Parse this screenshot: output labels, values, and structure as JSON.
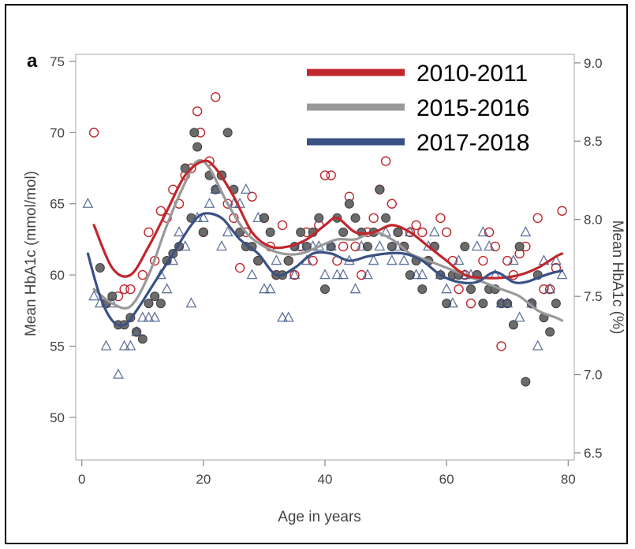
{
  "chart_data": {
    "type": "scatter",
    "panel_label": "a",
    "xlabel": "Age in years",
    "ylabel": "Mean HbA1c (mmol/mol)",
    "ylabel_right": "Mean HbA1c (%)",
    "xlim": [
      -1,
      81
    ],
    "ylim": [
      47,
      75.5
    ],
    "xticks": [
      0,
      20,
      40,
      60,
      80
    ],
    "yticks": [
      50,
      55,
      60,
      65,
      70,
      75
    ],
    "yticks_right": [
      {
        "label": "6.5",
        "value": 47.5
      },
      {
        "label": "7.0",
        "value": 53.0
      },
      {
        "label": "7.5",
        "value": 58.5
      },
      {
        "label": "8.0",
        "value": 63.9
      },
      {
        "label": "8.5",
        "value": 69.4
      },
      {
        "label": "9.0",
        "value": 74.9
      }
    ],
    "grid": false,
    "legend_position": "top-right",
    "colors": {
      "2010-2011": "#c0272d",
      "2015-2016": "#999999",
      "2017-2018": "#3a5184"
    },
    "series": [
      {
        "name": "2010-2011",
        "marker": "open-circle",
        "color": "#c0272d",
        "points": [
          [
            2,
            70
          ],
          [
            4,
            58
          ],
          [
            6,
            58.5
          ],
          [
            7,
            59
          ],
          [
            8,
            59
          ],
          [
            9,
            56
          ],
          [
            10,
            60
          ],
          [
            11,
            63
          ],
          [
            12,
            61
          ],
          [
            13,
            64.5
          ],
          [
            14,
            64
          ],
          [
            15,
            66
          ],
          [
            16,
            65
          ],
          [
            17,
            67
          ],
          [
            18,
            67.5
          ],
          [
            19,
            71.5
          ],
          [
            19.5,
            70
          ],
          [
            20,
            63
          ],
          [
            21,
            68
          ],
          [
            22,
            72.5
          ],
          [
            23,
            67
          ],
          [
            24,
            65
          ],
          [
            25,
            64
          ],
          [
            26,
            60.5
          ],
          [
            27,
            63
          ],
          [
            28,
            65.5
          ],
          [
            29,
            61
          ],
          [
            30,
            64
          ],
          [
            31,
            62
          ],
          [
            32,
            60
          ],
          [
            33,
            63.5
          ],
          [
            34,
            61
          ],
          [
            35,
            60
          ],
          [
            36,
            62
          ],
          [
            37,
            63
          ],
          [
            38,
            61
          ],
          [
            39,
            63.5
          ],
          [
            40,
            67
          ],
          [
            41,
            67
          ],
          [
            42,
            61
          ],
          [
            43,
            62
          ],
          [
            44,
            65.5
          ],
          [
            45,
            62
          ],
          [
            46,
            60
          ],
          [
            47,
            63
          ],
          [
            48,
            64
          ],
          [
            49,
            66
          ],
          [
            50,
            68
          ],
          [
            51,
            65
          ],
          [
            52,
            63
          ],
          [
            53,
            62
          ],
          [
            54,
            63
          ],
          [
            55,
            63.5
          ],
          [
            56,
            63
          ],
          [
            57,
            61
          ],
          [
            58,
            62
          ],
          [
            59,
            64
          ],
          [
            60,
            63
          ],
          [
            61,
            61
          ],
          [
            62,
            59
          ],
          [
            63,
            60
          ],
          [
            64,
            58
          ],
          [
            65,
            60
          ],
          [
            66,
            61
          ],
          [
            67,
            63
          ],
          [
            68,
            62
          ],
          [
            69,
            55
          ],
          [
            70,
            61
          ],
          [
            71,
            60
          ],
          [
            72,
            61.5
          ],
          [
            73,
            62
          ],
          [
            74,
            58
          ],
          [
            75,
            64
          ],
          [
            76,
            59
          ],
          [
            77,
            59
          ],
          [
            78,
            60.5
          ],
          [
            79,
            64.5
          ]
        ],
        "trend": [
          [
            2,
            63.5
          ],
          [
            5,
            60.5
          ],
          [
            8,
            60
          ],
          [
            11,
            62
          ],
          [
            14,
            64.5
          ],
          [
            17,
            67
          ],
          [
            20,
            68
          ],
          [
            22,
            67.5
          ],
          [
            25,
            65.5
          ],
          [
            28,
            63
          ],
          [
            31,
            62
          ],
          [
            34,
            62
          ],
          [
            37,
            62.5
          ],
          [
            40,
            63.5
          ],
          [
            42,
            64
          ],
          [
            45,
            63
          ],
          [
            48,
            63
          ],
          [
            51,
            63.5
          ],
          [
            54,
            63
          ],
          [
            57,
            62
          ],
          [
            60,
            61
          ],
          [
            63,
            60
          ],
          [
            66,
            59.8
          ],
          [
            69,
            59.8
          ],
          [
            72,
            60
          ],
          [
            75,
            60.5
          ],
          [
            78,
            61.3
          ],
          [
            79,
            61.5
          ]
        ]
      },
      {
        "name": "2015-2016",
        "marker": "filled-circle",
        "color": "#999999",
        "points": [
          [
            3,
            60.5
          ],
          [
            4,
            58
          ],
          [
            5,
            58.5
          ],
          [
            6,
            56.5
          ],
          [
            7,
            56.5
          ],
          [
            8,
            57
          ],
          [
            9,
            56
          ],
          [
            10,
            55.5
          ],
          [
            11,
            58
          ],
          [
            12,
            58.5
          ],
          [
            13,
            58
          ],
          [
            14,
            61
          ],
          [
            15,
            61.5
          ],
          [
            16,
            62
          ],
          [
            17,
            67.5
          ],
          [
            18,
            64
          ],
          [
            18.5,
            70
          ],
          [
            19,
            69
          ],
          [
            20,
            63
          ],
          [
            21,
            67
          ],
          [
            22,
            66
          ],
          [
            23,
            67
          ],
          [
            24,
            70
          ],
          [
            25,
            66
          ],
          [
            26,
            63
          ],
          [
            27,
            62
          ],
          [
            28,
            62
          ],
          [
            29,
            61
          ],
          [
            30,
            64
          ],
          [
            31,
            63
          ],
          [
            32,
            60
          ],
          [
            33,
            60
          ],
          [
            34,
            61
          ],
          [
            35,
            62
          ],
          [
            36,
            63
          ],
          [
            37,
            62
          ],
          [
            38,
            63
          ],
          [
            39,
            64
          ],
          [
            40,
            59
          ],
          [
            41,
            62
          ],
          [
            42,
            64
          ],
          [
            43,
            63
          ],
          [
            44,
            65
          ],
          [
            45,
            64
          ],
          [
            46,
            63
          ],
          [
            47,
            62
          ],
          [
            48,
            63
          ],
          [
            49,
            66
          ],
          [
            50,
            64
          ],
          [
            51,
            62
          ],
          [
            52,
            63
          ],
          [
            53,
            62
          ],
          [
            54,
            60
          ],
          [
            55,
            61
          ],
          [
            56,
            59
          ],
          [
            57,
            61
          ],
          [
            58,
            62
          ],
          [
            59,
            60
          ],
          [
            60,
            58
          ],
          [
            61,
            60
          ],
          [
            62,
            60
          ],
          [
            63,
            62
          ],
          [
            64,
            59
          ],
          [
            65,
            60
          ],
          [
            66,
            58
          ],
          [
            67,
            59
          ],
          [
            68,
            59
          ],
          [
            69,
            58
          ],
          [
            70,
            58
          ],
          [
            71,
            56.5
          ],
          [
            72,
            62
          ],
          [
            73,
            52.5
          ],
          [
            74,
            58
          ],
          [
            75,
            60
          ],
          [
            76,
            57
          ],
          [
            77,
            56
          ],
          [
            78,
            58
          ]
        ],
        "trend": [
          [
            2,
            59
          ],
          [
            5,
            58
          ],
          [
            8,
            57.8
          ],
          [
            11,
            60
          ],
          [
            14,
            63.5
          ],
          [
            17,
            66.5
          ],
          [
            19,
            68
          ],
          [
            21,
            67.5
          ],
          [
            24,
            65
          ],
          [
            27,
            63
          ],
          [
            30,
            62
          ],
          [
            33,
            61.5
          ],
          [
            36,
            61.5
          ],
          [
            39,
            62
          ],
          [
            42,
            62.5
          ],
          [
            45,
            62.5
          ],
          [
            48,
            63
          ],
          [
            51,
            62.5
          ],
          [
            54,
            61.5
          ],
          [
            57,
            61
          ],
          [
            60,
            60.5
          ],
          [
            63,
            60
          ],
          [
            66,
            59.5
          ],
          [
            69,
            59
          ],
          [
            72,
            58.5
          ],
          [
            75,
            57.5
          ],
          [
            78,
            57
          ],
          [
            79,
            56.8
          ]
        ]
      },
      {
        "name": "2017-2018",
        "marker": "open-triangle",
        "color": "#3a5184",
        "points": [
          [
            1,
            65
          ],
          [
            2,
            58.5
          ],
          [
            3,
            58
          ],
          [
            4,
            55
          ],
          [
            5,
            58
          ],
          [
            6,
            53
          ],
          [
            7,
            55
          ],
          [
            8,
            55
          ],
          [
            9,
            56
          ],
          [
            10,
            57
          ],
          [
            11,
            57
          ],
          [
            12,
            57
          ],
          [
            13,
            60
          ],
          [
            14,
            59
          ],
          [
            15,
            61
          ],
          [
            16,
            63
          ],
          [
            17,
            62
          ],
          [
            18,
            58
          ],
          [
            19,
            64
          ],
          [
            20,
            64
          ],
          [
            21,
            65
          ],
          [
            22,
            66
          ],
          [
            23,
            62
          ],
          [
            24,
            63
          ],
          [
            25,
            65
          ],
          [
            26,
            65
          ],
          [
            27,
            66
          ],
          [
            28,
            60
          ],
          [
            29,
            64
          ],
          [
            30,
            59
          ],
          [
            31,
            59
          ],
          [
            32,
            61
          ],
          [
            33,
            57
          ],
          [
            34,
            57
          ],
          [
            35,
            60
          ],
          [
            36,
            62
          ],
          [
            37,
            61
          ],
          [
            38,
            62
          ],
          [
            39,
            62
          ],
          [
            40,
            60
          ],
          [
            41,
            62
          ],
          [
            42,
            60
          ],
          [
            43,
            60
          ],
          [
            44,
            61
          ],
          [
            45,
            59
          ],
          [
            46,
            62
          ],
          [
            47,
            60
          ],
          [
            48,
            61
          ],
          [
            49,
            62
          ],
          [
            50,
            63
          ],
          [
            51,
            61
          ],
          [
            52,
            62
          ],
          [
            53,
            61
          ],
          [
            54,
            63
          ],
          [
            55,
            60
          ],
          [
            56,
            60
          ],
          [
            57,
            62
          ],
          [
            58,
            63
          ],
          [
            59,
            60
          ],
          [
            60,
            59
          ],
          [
            61,
            58
          ],
          [
            62,
            61
          ],
          [
            63,
            60
          ],
          [
            64,
            60
          ],
          [
            65,
            62
          ],
          [
            66,
            63
          ],
          [
            67,
            62
          ],
          [
            68,
            60
          ],
          [
            69,
            58
          ],
          [
            70,
            58
          ],
          [
            71,
            61
          ],
          [
            72,
            57
          ],
          [
            73,
            63
          ],
          [
            74,
            58
          ],
          [
            75,
            55
          ],
          [
            76,
            61
          ],
          [
            77,
            59
          ],
          [
            78,
            61
          ],
          [
            79,
            60
          ]
        ],
        "trend": [
          [
            1,
            61.5
          ],
          [
            3,
            58.5
          ],
          [
            5,
            56.8
          ],
          [
            7,
            56.5
          ],
          [
            9,
            57.5
          ],
          [
            12,
            59.5
          ],
          [
            15,
            61.5
          ],
          [
            18,
            63.5
          ],
          [
            20,
            64.3
          ],
          [
            23,
            64
          ],
          [
            26,
            62.5
          ],
          [
            29,
            61.5
          ],
          [
            32,
            60
          ],
          [
            35,
            60.5
          ],
          [
            38,
            61.5
          ],
          [
            41,
            61.5
          ],
          [
            44,
            61
          ],
          [
            47,
            61.3
          ],
          [
            50,
            61.5
          ],
          [
            53,
            61.5
          ],
          [
            56,
            61
          ],
          [
            59,
            60
          ],
          [
            62,
            59.5
          ],
          [
            65,
            59.5
          ],
          [
            68,
            60.2
          ],
          [
            71,
            59.5
          ],
          [
            73,
            59.5
          ],
          [
            75,
            59.8
          ],
          [
            77,
            60.1
          ],
          [
            79,
            60.3
          ]
        ]
      }
    ]
  }
}
